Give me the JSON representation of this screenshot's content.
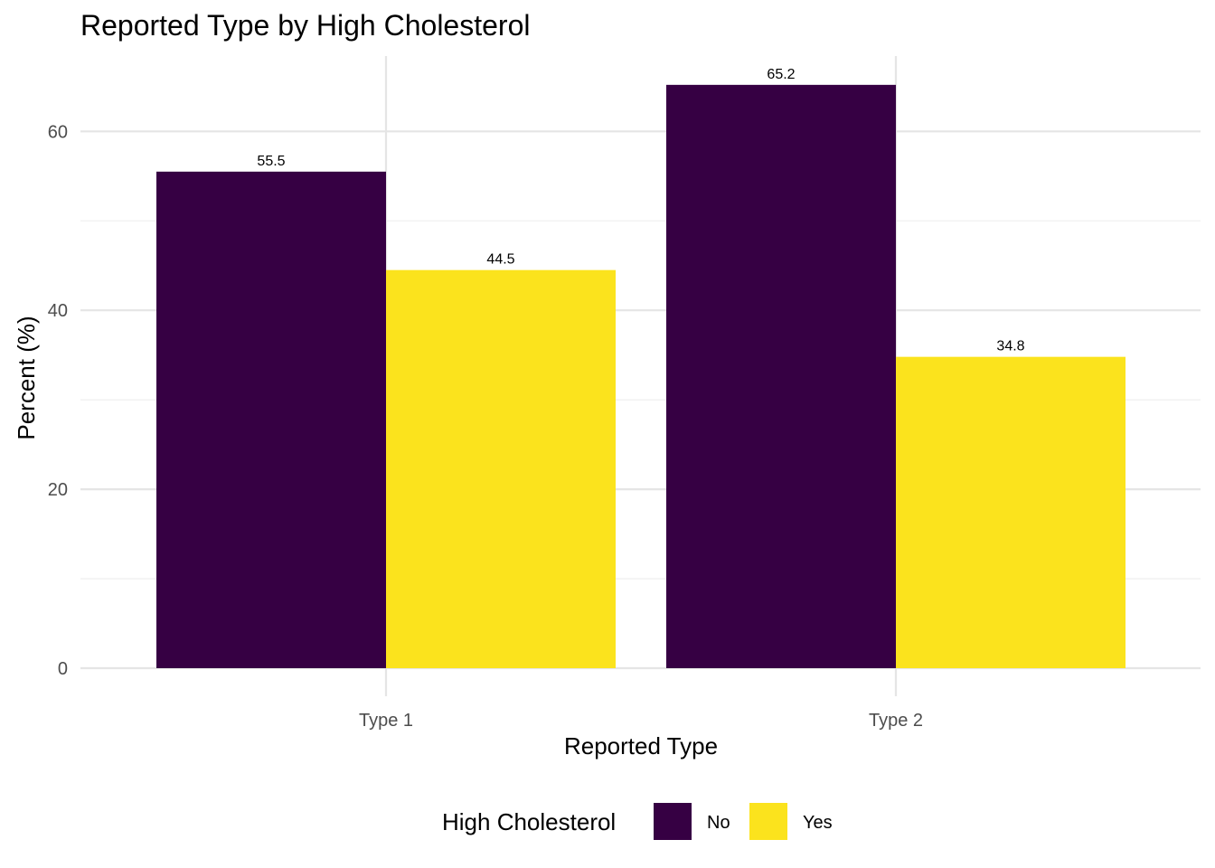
{
  "chart_data": {
    "type": "bar",
    "title": "Reported Type by High Cholesterol",
    "xlabel": "Reported Type",
    "ylabel": "Percent (%)",
    "categories": [
      "Type 1",
      "Type 2"
    ],
    "series": [
      {
        "name": "No",
        "values": [
          55.5,
          65.2
        ],
        "color": "#360043",
        "labels": [
          "55.5",
          "65.2"
        ]
      },
      {
        "name": "Yes",
        "values": [
          44.5,
          34.8
        ],
        "color": "#fbe31d",
        "labels": [
          "44.5",
          "34.8"
        ]
      }
    ],
    "ylim": [
      0,
      68.5
    ],
    "yticks": [
      0,
      20,
      40,
      60
    ],
    "ytick_labels": [
      "0",
      "20",
      "40",
      "60"
    ],
    "grid": true,
    "legend": {
      "title": "High Cholesterol",
      "placement": "bottom"
    }
  }
}
